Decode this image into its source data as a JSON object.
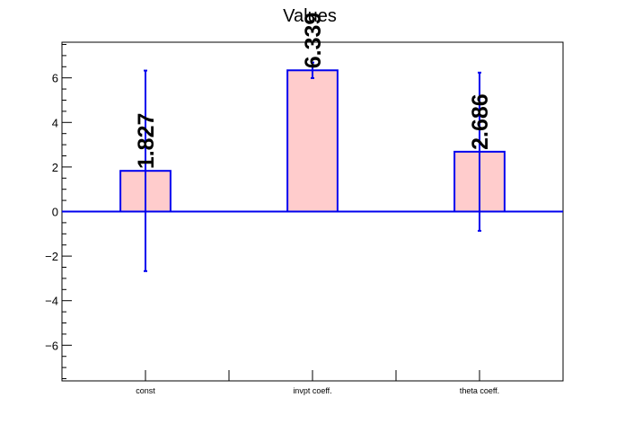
{
  "chart_data": {
    "type": "bar",
    "title": "Values",
    "xlabel": "",
    "ylabel": "",
    "categories": [
      "const",
      "invpt coeff.",
      "theta coeff."
    ],
    "values": [
      1.827,
      6.339,
      2.686
    ],
    "errors": [
      4.5,
      0.35,
      3.55
    ],
    "value_labels": [
      "1.827",
      "6.339",
      "2.686"
    ],
    "ylim": [
      -7.6,
      7.6
    ],
    "yticks": [
      -6,
      -4,
      -2,
      0,
      2,
      4,
      6
    ],
    "ytick_labels": [
      "−6",
      "−4",
      "−2",
      "0",
      "2",
      "4",
      "6"
    ],
    "grid": false,
    "legend": "none",
    "colors": {
      "bar_fill": "#ffcccc",
      "bar_edge": "#0000ee",
      "error_bar": "#0000ee",
      "zero_line": "#0000ee",
      "axis": "#000000"
    }
  }
}
